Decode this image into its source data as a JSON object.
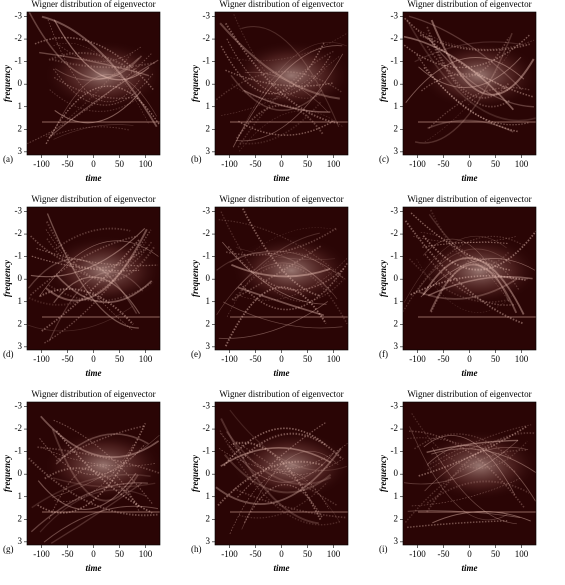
{
  "chart_data": [
    {
      "type": "wigner",
      "title": "Wigner distribution of eigenvector",
      "x_label": "time",
      "y_label": "frequency",
      "panel_label": "(a)",
      "xlim": [
        -128,
        128
      ],
      "ylim": [
        -3.2,
        3.14
      ],
      "y_inverted": true,
      "xticks": [
        -100,
        -50,
        0,
        50,
        100
      ],
      "yticks": [
        -3,
        -2,
        -1,
        0,
        1,
        2,
        3
      ]
    },
    {
      "type": "wigner",
      "title": "Wigner distribution of eigenvector",
      "x_label": "time",
      "y_label": "frequency",
      "panel_label": "(b)",
      "xlim": [
        -128,
        128
      ],
      "ylim": [
        -3.2,
        3.14
      ],
      "y_inverted": true,
      "xticks": [
        -100,
        -50,
        0,
        50,
        100
      ],
      "yticks": [
        -3,
        -2,
        -1,
        0,
        1,
        2,
        3
      ]
    },
    {
      "type": "wigner",
      "title": "Wigner distribution of eigenvector",
      "x_label": "time",
      "y_label": "frequency",
      "panel_label": "(c)",
      "xlim": [
        -128,
        128
      ],
      "ylim": [
        -3.2,
        3.14
      ],
      "y_inverted": true,
      "xticks": [
        -100,
        -50,
        0,
        50,
        100
      ],
      "yticks": [
        -3,
        -2,
        -1,
        0,
        1,
        2,
        3
      ]
    },
    {
      "type": "wigner",
      "title": "Wigner distribution of eigenvector",
      "x_label": "time",
      "y_label": "frequency",
      "panel_label": "(d)",
      "xlim": [
        -128,
        128
      ],
      "ylim": [
        -3.2,
        3.14
      ],
      "y_inverted": true,
      "xticks": [
        -100,
        -50,
        0,
        50,
        100
      ],
      "yticks": [
        -3,
        -2,
        -1,
        0,
        1,
        2,
        3
      ]
    },
    {
      "type": "wigner",
      "title": "Wigner distribution of eigenvector",
      "x_label": "time",
      "y_label": "frequency",
      "panel_label": "(e)",
      "xlim": [
        -128,
        128
      ],
      "ylim": [
        -3.2,
        3.14
      ],
      "y_inverted": true,
      "xticks": [
        -100,
        -50,
        0,
        50,
        100
      ],
      "yticks": [
        -3,
        -2,
        -1,
        0,
        1,
        2,
        3
      ]
    },
    {
      "type": "wigner",
      "title": "Wigner distribution of eigenvector",
      "x_label": "time",
      "y_label": "frequency",
      "panel_label": "(f)",
      "xlim": [
        -128,
        128
      ],
      "ylim": [
        -3.2,
        3.14
      ],
      "y_inverted": true,
      "xticks": [
        -100,
        -50,
        0,
        50,
        100
      ],
      "yticks": [
        -3,
        -2,
        -1,
        0,
        1,
        2,
        3
      ]
    },
    {
      "type": "wigner",
      "title": "Wigner distribution of eigenvector",
      "x_label": "time",
      "y_label": "frequency",
      "panel_label": "(g)",
      "xlim": [
        -128,
        128
      ],
      "ylim": [
        -3.2,
        3.14
      ],
      "y_inverted": true,
      "xticks": [
        -100,
        -50,
        0,
        50,
        100
      ],
      "yticks": [
        -3,
        -2,
        -1,
        0,
        1,
        2,
        3
      ]
    },
    {
      "type": "wigner",
      "title": "Wigner distribution of eigenvector",
      "x_label": "time",
      "y_label": "frequency",
      "panel_label": "(h)",
      "xlim": [
        -128,
        128
      ],
      "ylim": [
        -3.2,
        3.14
      ],
      "y_inverted": true,
      "xticks": [
        -100,
        -50,
        0,
        50,
        100
      ],
      "yticks": [
        -3,
        -2,
        -1,
        0,
        1,
        2,
        3
      ]
    },
    {
      "type": "wigner",
      "title": "Wigner distribution of eigenvector",
      "x_label": "time",
      "y_label": "frequency",
      "panel_label": "(i)",
      "xlim": [
        -128,
        128
      ],
      "ylim": [
        -3.2,
        3.14
      ],
      "y_inverted": true,
      "xticks": [
        -100,
        -50,
        0,
        50,
        100
      ],
      "yticks": [
        -3,
        -2,
        -1,
        0,
        1,
        2,
        3
      ]
    }
  ]
}
